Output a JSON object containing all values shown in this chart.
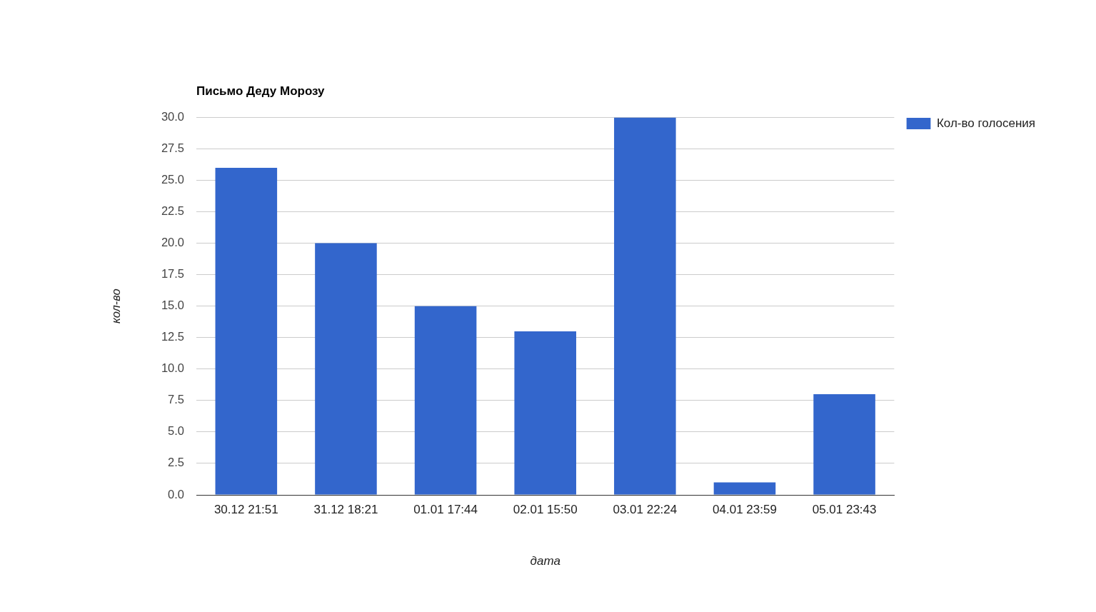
{
  "chart_data": {
    "type": "bar",
    "title": "Письмо Деду Морозу",
    "xlabel": "дата",
    "ylabel": "кол-во",
    "categories": [
      "30.12 21:51",
      "31.12 18:21",
      "01.01 17:44",
      "02.01 15:50",
      "03.01 22:24",
      "04.01 23:59",
      "05.01 23:43"
    ],
    "series": [
      {
        "name": "Кол-во голосения",
        "color": "#3366cc",
        "values": [
          26,
          20,
          15,
          13,
          30,
          1,
          8
        ]
      }
    ],
    "ylim": [
      0,
      30
    ],
    "yticks": [
      {
        "value": 0,
        "label": "0.0"
      },
      {
        "value": 2.5,
        "label": "2.5"
      },
      {
        "value": 5,
        "label": "5.0"
      },
      {
        "value": 7.5,
        "label": "7.5"
      },
      {
        "value": 10,
        "label": "10.0"
      },
      {
        "value": 12.5,
        "label": "12.5"
      },
      {
        "value": 15,
        "label": "15.0"
      },
      {
        "value": 17.5,
        "label": "17.5"
      },
      {
        "value": 20,
        "label": "20.0"
      },
      {
        "value": 22.5,
        "label": "22.5"
      },
      {
        "value": 25,
        "label": "25.0"
      },
      {
        "value": 27.5,
        "label": "27.5"
      },
      {
        "value": 30,
        "label": "30.0"
      }
    ],
    "grid": "y",
    "legend": "right"
  }
}
